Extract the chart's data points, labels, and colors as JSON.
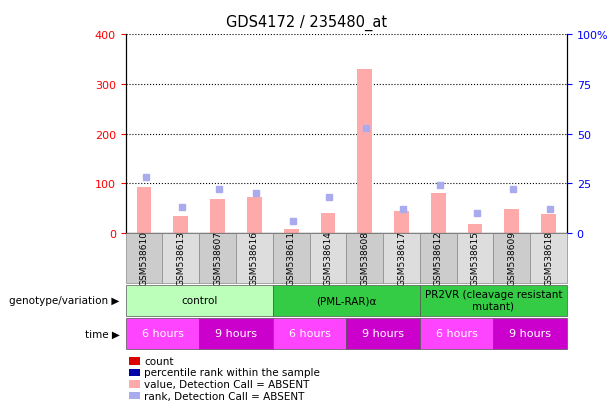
{
  "title": "GDS4172 / 235480_at",
  "samples": [
    "GSM538610",
    "GSM538613",
    "GSM538607",
    "GSM538616",
    "GSM538611",
    "GSM538614",
    "GSM538608",
    "GSM538617",
    "GSM538612",
    "GSM538615",
    "GSM538609",
    "GSM538618"
  ],
  "count_values": [
    92,
    35,
    68,
    72,
    8,
    40,
    330,
    45,
    80,
    18,
    48,
    38
  ],
  "rank_values": [
    28,
    13,
    22,
    20,
    6,
    18,
    53,
    12,
    24,
    10,
    22,
    12
  ],
  "absent_count": [
    true,
    true,
    true,
    true,
    true,
    true,
    true,
    true,
    true,
    true,
    true,
    true
  ],
  "absent_rank": [
    true,
    true,
    true,
    true,
    true,
    true,
    true,
    true,
    true,
    true,
    true,
    true
  ],
  "ylim_left": [
    0,
    400
  ],
  "ylim_right": [
    0,
    100
  ],
  "yticks_left": [
    0,
    100,
    200,
    300,
    400
  ],
  "yticks_right": [
    0,
    25,
    50,
    75,
    100
  ],
  "ytick_labels_right": [
    "0",
    "25",
    "50",
    "75",
    "100%"
  ],
  "color_count_absent": "#ffaaaa",
  "color_rank_absent": "#aaaaee",
  "color_count_present": "#dd0000",
  "color_rank_present": "#0000aa",
  "geno_groups": [
    {
      "label": "control",
      "start": 0,
      "end": 4,
      "color": "#bbffbb"
    },
    {
      "label": "(PML-RAR)α",
      "start": 4,
      "end": 8,
      "color": "#33cc44"
    },
    {
      "label": "PR2VR (cleavage resistant\nmutant)",
      "start": 8,
      "end": 12,
      "color": "#33cc44"
    }
  ],
  "time_groups": [
    {
      "label": "6 hours",
      "start": 0,
      "end": 2,
      "color": "#ff44ff"
    },
    {
      "label": "9 hours",
      "start": 2,
      "end": 4,
      "color": "#cc00cc"
    },
    {
      "label": "6 hours",
      "start": 4,
      "end": 6,
      "color": "#ff44ff"
    },
    {
      "label": "9 hours",
      "start": 6,
      "end": 8,
      "color": "#cc00cc"
    },
    {
      "label": "6 hours",
      "start": 8,
      "end": 10,
      "color": "#ff44ff"
    },
    {
      "label": "9 hours",
      "start": 10,
      "end": 12,
      "color": "#cc00cc"
    }
  ],
  "legend_items": [
    {
      "label": "count",
      "color": "#dd0000"
    },
    {
      "label": "percentile rank within the sample",
      "color": "#0000aa"
    },
    {
      "label": "value, Detection Call = ABSENT",
      "color": "#ffaaaa"
    },
    {
      "label": "rank, Detection Call = ABSENT",
      "color": "#aaaaee"
    }
  ],
  "bar_width": 0.4,
  "genotype_label": "genotype/variation",
  "time_label": "time",
  "bg_colors": [
    "#cccccc",
    "#dddddd"
  ]
}
